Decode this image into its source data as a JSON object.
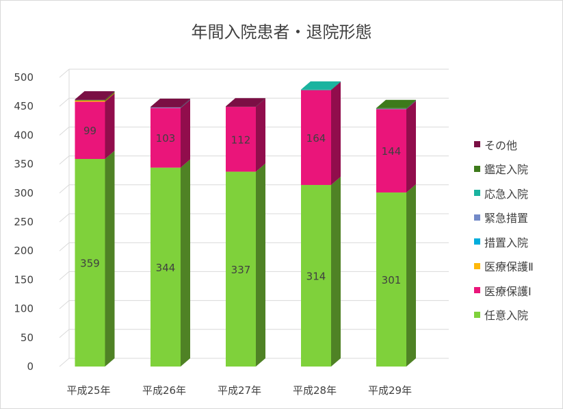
{
  "chart_data": {
    "type": "bar",
    "stacked": true,
    "style": "3d-column",
    "title": "年間入院患者・退院形態",
    "xlabel": "",
    "ylabel": "",
    "ylim": [
      0,
      500
    ],
    "yticks": [
      0,
      50,
      100,
      150,
      200,
      250,
      300,
      350,
      400,
      450,
      500
    ],
    "grid": true,
    "legend_position": "right",
    "categories": [
      "平成25年",
      "平成26年",
      "平成27年",
      "平成28年",
      "平成29年"
    ],
    "series": [
      {
        "name": "任意入院",
        "color": "#7fd13b",
        "values": [
          359,
          344,
          337,
          314,
          301
        ],
        "labeled": true
      },
      {
        "name": "医療保護Ⅰ",
        "color": "#ea157a",
        "values": [
          99,
          103,
          112,
          164,
          144
        ],
        "labeled": true
      },
      {
        "name": "医療保護Ⅱ",
        "color": "#feb80a",
        "values": [
          2,
          0,
          0,
          0,
          0
        ],
        "labeled": false
      },
      {
        "name": "措置入院",
        "color": "#00addc",
        "values": [
          0,
          0,
          0,
          0,
          0
        ],
        "labeled": false
      },
      {
        "name": "緊急措置",
        "color": "#738ac8",
        "values": [
          0,
          1,
          0,
          0,
          1
        ],
        "labeled": false
      },
      {
        "name": "応急入院",
        "color": "#1ab39f",
        "values": [
          0,
          0,
          0,
          1,
          0
        ],
        "labeled": false
      },
      {
        "name": "鑑定入院",
        "color": "#3d7a1b",
        "values": [
          1,
          0,
          0,
          0,
          1
        ],
        "labeled": false
      },
      {
        "name": "その他",
        "color": "#7a0f44",
        "values": [
          1,
          1,
          1,
          0,
          0
        ],
        "labeled": false
      }
    ]
  }
}
